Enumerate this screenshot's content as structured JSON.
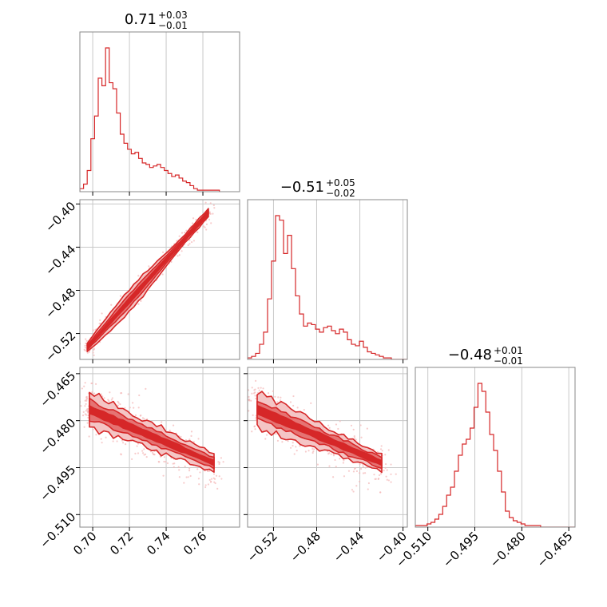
{
  "colors": {
    "main": "#d62728",
    "fill_outer": "#f4c5c5",
    "fill_inner": "#e57373",
    "scatter": "#f3b6b6"
  },
  "chart_data": {
    "type": "corner",
    "grid": true,
    "parameters": [
      {
        "title": {
          "value": "0.71",
          "plus": "+0.03",
          "minus": "−0.01"
        },
        "range": [
          0.693,
          0.78
        ],
        "ticks": [
          0.7,
          0.72,
          0.74,
          0.76
        ],
        "tick_labels": [
          "0.70",
          "0.72",
          "0.74",
          "0.76"
        ],
        "hist": {
          "bin_start": 0.693,
          "bin_width": 0.002,
          "counts": [
            2,
            5,
            14,
            35,
            50,
            75,
            70,
            95,
            72,
            68,
            52,
            38,
            32,
            28,
            25,
            26,
            22,
            19,
            18,
            16,
            17,
            18,
            16,
            14,
            12,
            10,
            11,
            9,
            7,
            6,
            4,
            2,
            1,
            1,
            1,
            1,
            1,
            1
          ]
        }
      },
      {
        "title": {
          "value": "−0.51",
          "plus": "+0.05",
          "minus": "−0.02"
        },
        "range": [
          -0.544,
          -0.396
        ],
        "ticks": [
          -0.52,
          -0.48,
          -0.44,
          -0.4
        ],
        "tick_labels": [
          "−0.52",
          "−0.48",
          "−0.44",
          "−0.40"
        ],
        "hist": {
          "bin_start": -0.544,
          "bin_width": 0.0037,
          "counts": [
            1,
            2,
            4,
            10,
            18,
            40,
            65,
            95,
            92,
            70,
            82,
            60,
            42,
            30,
            22,
            24,
            23,
            20,
            18,
            21,
            22,
            19,
            17,
            20,
            18,
            13,
            10,
            9,
            12,
            8,
            5,
            4,
            3,
            2,
            1,
            1,
            0,
            0,
            0,
            0
          ]
        }
      },
      {
        "title": {
          "value": "−0.48",
          "plus": "+0.01",
          "minus": "−0.01"
        },
        "range": [
          -0.514,
          -0.463
        ],
        "ticks": [
          -0.51,
          -0.495,
          -0.48,
          -0.465
        ],
        "tick_labels": [
          "−0.510",
          "−0.495",
          "−0.480",
          "−0.465"
        ],
        "hist": {
          "bin_start": -0.514,
          "bin_width": 0.00125,
          "counts": [
            1,
            1,
            1,
            2,
            3,
            5,
            8,
            13,
            20,
            25,
            35,
            45,
            52,
            55,
            62,
            75,
            90,
            85,
            72,
            58,
            48,
            35,
            22,
            10,
            6,
            4,
            3,
            2,
            1,
            1,
            1,
            1,
            0,
            0,
            0,
            0,
            0,
            0,
            0,
            0,
            0
          ]
        }
      }
    ]
  }
}
